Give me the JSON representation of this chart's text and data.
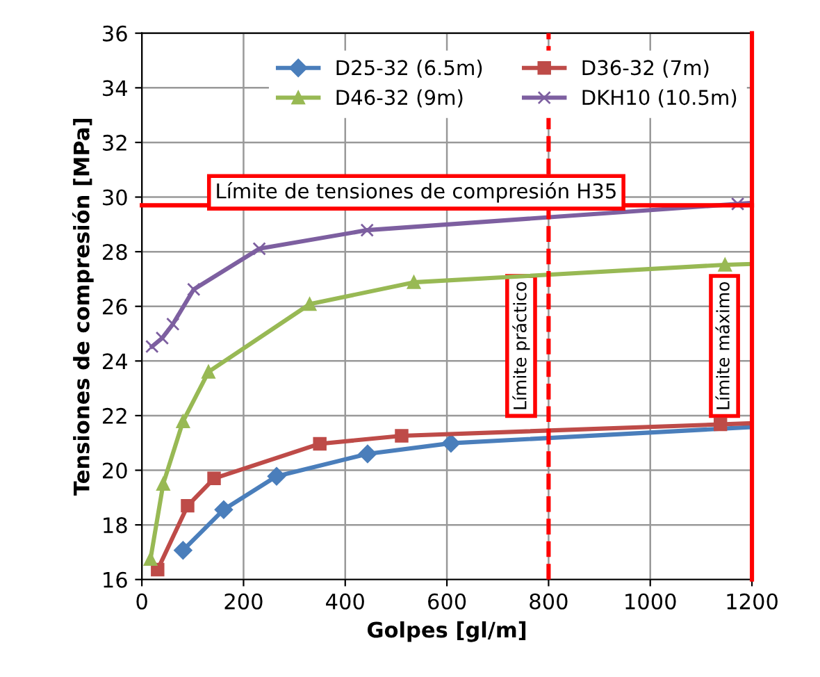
{
  "chart_data": {
    "type": "line",
    "xlabel": "Golpes [gl/m]",
    "ylabel": "Tensiones de compresión [MPa]",
    "xlim": [
      0,
      1200
    ],
    "xticks": [
      0,
      200,
      400,
      600,
      800,
      1000,
      1200
    ],
    "ylim": [
      16,
      36
    ],
    "yticks": [
      16,
      18,
      20,
      22,
      24,
      26,
      28,
      30,
      32,
      34,
      36
    ],
    "grid": true,
    "legend": "top",
    "line_style": "solid",
    "series": [
      {
        "name": "D25-32 (6.5m)",
        "color": "#4a7ebb",
        "marker": "diamond",
        "x": [
          81,
          161,
          265,
          444,
          608,
          1200
        ],
        "values": [
          17.07,
          18.56,
          19.78,
          20.6,
          20.99,
          21.58
        ]
      },
      {
        "name": "D36-32 (7m)",
        "color": "#be4b48",
        "marker": "square",
        "x": [
          31,
          90,
          142,
          350,
          511,
          1138,
          1200
        ],
        "values": [
          16.36,
          18.7,
          19.7,
          20.97,
          21.26,
          21.68,
          21.72
        ]
      },
      {
        "name": "D46-32 (9m)",
        "color": "#98b954",
        "marker": "triangle",
        "x": [
          17,
          42,
          81,
          131,
          330,
          535,
          1147,
          1200
        ],
        "values": [
          16.75,
          19.5,
          21.79,
          23.6,
          26.08,
          26.88,
          27.52,
          27.55
        ]
      },
      {
        "name": "DKH10 (10.5m)",
        "color": "#7d5fa0",
        "marker": "cross",
        "x": [
          20,
          40,
          61,
          102,
          231,
          443,
          1172,
          1200
        ],
        "values": [
          24.53,
          24.84,
          25.35,
          26.62,
          28.11,
          28.79,
          29.75,
          29.79
        ]
      }
    ],
    "ref_lines": [
      {
        "axis": "y",
        "value": 29.7,
        "label": "Límite de tensiones de compresión H35",
        "color": "#ff0000",
        "line_style": "solid"
      },
      {
        "axis": "x",
        "value": 800,
        "label": "Límite práctico",
        "color": "#ff0000",
        "line_style": "dashed"
      },
      {
        "axis": "x",
        "value": 1200,
        "label": "Límite máximo",
        "color": "#ff0000",
        "line_style": "solid"
      }
    ]
  }
}
